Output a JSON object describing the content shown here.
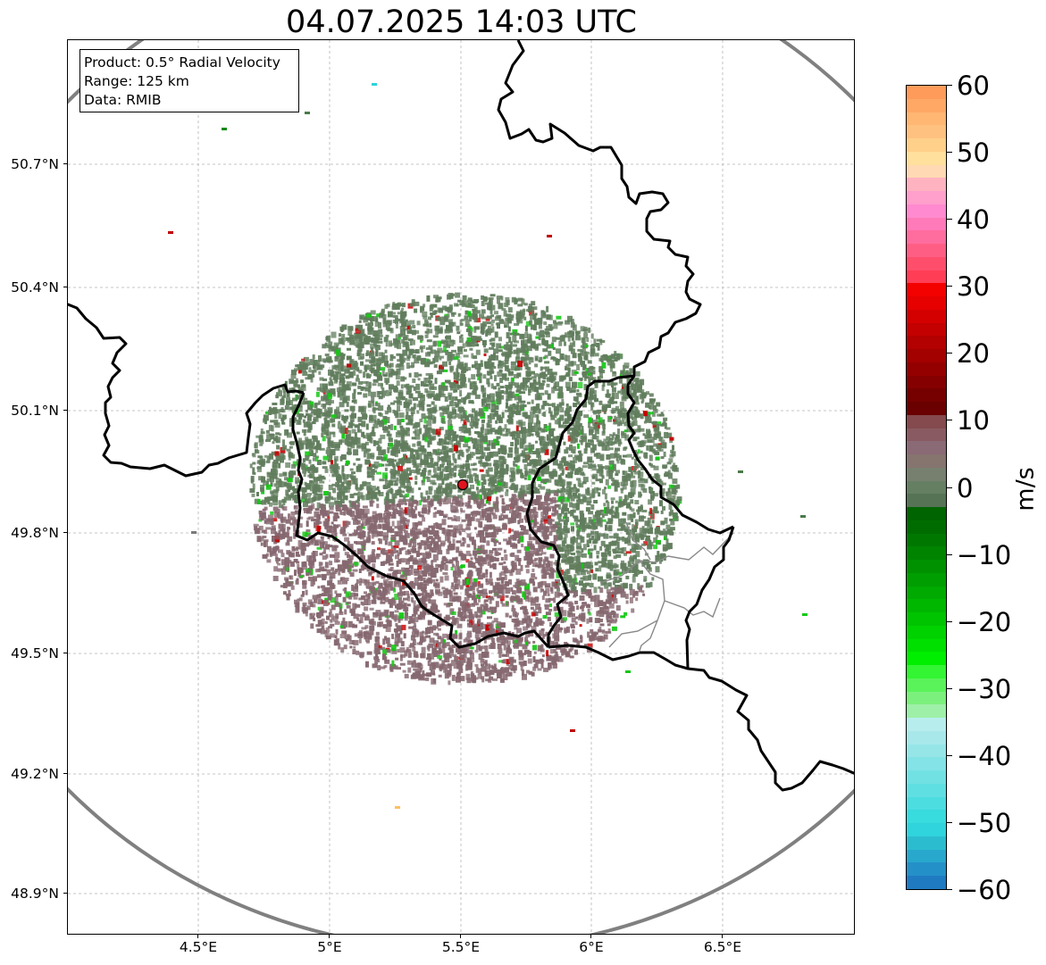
{
  "title": "04.07.2025 14:03 UTC",
  "info_box": {
    "product": "Product: 0.5° Radial Velocity",
    "range": "Range: 125 km",
    "source": "Data: RMIB"
  },
  "map": {
    "projection": "lat-lon",
    "lon_range": [
      4.0,
      7.0
    ],
    "lat_range": [
      48.8,
      51.0
    ],
    "grid": true,
    "radar_site": {
      "lon": 5.505,
      "lat": 49.915
    },
    "range_ring_km": 125,
    "colors": {
      "border": "#000000",
      "range_ring": "#808080",
      "subregion": "#888888",
      "site_marker": "#e0141e",
      "echo_negative_rose": "#866870",
      "echo_near_zero_green": "#617d5d"
    },
    "lat_labels": [
      {
        "value": 50.7,
        "text": "50.7°N"
      },
      {
        "value": 50.4,
        "text": "50.4°N"
      },
      {
        "value": 50.1,
        "text": "50.1°N"
      },
      {
        "value": 49.8,
        "text": "49.8°N"
      },
      {
        "value": 49.5,
        "text": "49.5°N"
      },
      {
        "value": 49.2,
        "text": "49.2°N"
      },
      {
        "value": 48.9,
        "text": "48.9°N"
      }
    ],
    "lon_labels": [
      {
        "value": 4.5,
        "text": "4.5°E"
      },
      {
        "value": 5.0,
        "text": "5°E"
      },
      {
        "value": 5.5,
        "text": "5.5°E"
      },
      {
        "value": 6.0,
        "text": "6°E"
      },
      {
        "value": 6.5,
        "text": "6.5°E"
      }
    ]
  },
  "colorbar": {
    "unit": "m/s",
    "range": [
      -60,
      60
    ],
    "ticks": [
      {
        "value": 60,
        "text": "60"
      },
      {
        "value": 50,
        "text": "50"
      },
      {
        "value": 40,
        "text": "40"
      },
      {
        "value": 30,
        "text": "30"
      },
      {
        "value": 20,
        "text": "20"
      },
      {
        "value": 10,
        "text": "10"
      },
      {
        "value": 0,
        "text": "0"
      },
      {
        "value": -10,
        "text": "−10"
      },
      {
        "value": -20,
        "text": "−20"
      },
      {
        "value": -30,
        "text": "−30"
      },
      {
        "value": -40,
        "text": "−40"
      },
      {
        "value": -50,
        "text": "−50"
      },
      {
        "value": -60,
        "text": "−60"
      }
    ],
    "stops": [
      "#ff9b5a",
      "#ffa865",
      "#ffb773",
      "#ffc17f",
      "#ffd08a",
      "#ffe09c",
      "#ffd9b4",
      "#ffb3c0",
      "#ff9fcc",
      "#ff8ad0",
      "#ff7ab8",
      "#ff6d9e",
      "#ff5e84",
      "#ff4e6c",
      "#ff3e56",
      "#f30000",
      "#e60000",
      "#d40000",
      "#c40000",
      "#b30000",
      "#a30000",
      "#940000",
      "#850000",
      "#760000",
      "#6a0000",
      "#844a4d",
      "#8a5a62",
      "#8a6a74",
      "#86746f",
      "#77806e",
      "#657f62",
      "#577356",
      "#006400",
      "#006c00",
      "#007800",
      "#008400",
      "#009100",
      "#009e00",
      "#00aa00",
      "#00b700",
      "#00c400",
      "#00d200",
      "#00e000",
      "#00ee00",
      "#33f533",
      "#5af35a",
      "#7cf07c",
      "#9ef0a8",
      "#b8eded",
      "#a8e8ea",
      "#96e6e8",
      "#84e3e6",
      "#72e1e4",
      "#60dfe2",
      "#4cdde0",
      "#38dbde",
      "#30d4dc",
      "#2cbcd0",
      "#28a8cc",
      "#2490c8",
      "#1f7ac2"
    ]
  }
}
